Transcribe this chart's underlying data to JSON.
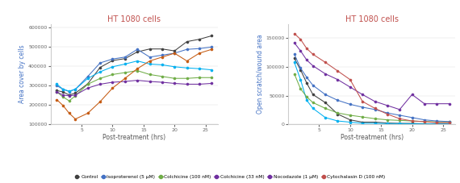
{
  "title": "HT 1080 cells",
  "title_color": "#c0504d",
  "xlabel": "Post-treatment (hrs)",
  "ylabel_left": "Area cover by cells",
  "ylabel_right": "Open scratch/wound area",
  "x": [
    1,
    2,
    3,
    4,
    6,
    8,
    10,
    12,
    14,
    16,
    18,
    20,
    22,
    24,
    26
  ],
  "left_series": [
    {
      "key": "control",
      "color": "#404040",
      "values": [
        275000,
        268000,
        252000,
        262000,
        310000,
        395000,
        430000,
        440000,
        475000,
        490000,
        490000,
        480000,
        528000,
        540000,
        558000
      ]
    },
    {
      "key": "isoprot",
      "color": "#4472c4",
      "values": [
        300000,
        282000,
        270000,
        282000,
        348000,
        418000,
        438000,
        448000,
        488000,
        448000,
        458000,
        468000,
        488000,
        492000,
        500000
      ]
    },
    {
      "key": "colch100",
      "color": "#70ad47",
      "values": [
        268000,
        242000,
        222000,
        248000,
        308000,
        338000,
        358000,
        368000,
        378000,
        358000,
        348000,
        338000,
        338000,
        342000,
        342000
      ]
    },
    {
      "key": "colch33",
      "color": "#7030a0",
      "values": [
        268000,
        252000,
        248000,
        252000,
        288000,
        308000,
        318000,
        322000,
        328000,
        322000,
        318000,
        312000,
        308000,
        308000,
        312000
      ]
    },
    {
      "key": "lightblue",
      "color": "#00b0f0",
      "values": [
        308000,
        282000,
        272000,
        282000,
        338000,
        372000,
        398000,
        412000,
        428000,
        412000,
        408000,
        398000,
        392000,
        388000,
        382000
      ]
    },
    {
      "key": "orange",
      "color": "#c55a11",
      "values": [
        228000,
        198000,
        158000,
        128000,
        158000,
        218000,
        288000,
        338000,
        388000,
        428000,
        448000,
        468000,
        428000,
        468000,
        488000
      ]
    }
  ],
  "right_series": [
    {
      "key": "control",
      "color": "#404040",
      "values": [
        115000,
        95000,
        72000,
        52000,
        38000,
        18000,
        8000,
        4000,
        4000,
        2500,
        1800,
        1800,
        1200,
        800,
        800
      ]
    },
    {
      "key": "lightblue",
      "color": "#00b0f0",
      "values": [
        108000,
        78000,
        42000,
        28000,
        12000,
        6000,
        4000,
        2000,
        2000,
        1500,
        1500,
        1200,
        800,
        800,
        800
      ]
    },
    {
      "key": "colch100",
      "color": "#70ad47",
      "values": [
        88000,
        62000,
        48000,
        38000,
        28000,
        20000,
        16000,
        13000,
        10000,
        8000,
        7000,
        6000,
        5000,
        4500,
        4500
      ]
    },
    {
      "key": "blue",
      "color": "#4472c4",
      "values": [
        122000,
        98000,
        82000,
        68000,
        52000,
        42000,
        35000,
        30000,
        26000,
        20000,
        16000,
        12000,
        8000,
        6000,
        5000
      ]
    },
    {
      "key": "nocodazole",
      "color": "#7030a0",
      "values": [
        142000,
        128000,
        112000,
        102000,
        88000,
        78000,
        65000,
        52000,
        40000,
        33000,
        26000,
        52000,
        36000,
        36000,
        36000
      ]
    },
    {
      "key": "cytochalasin",
      "color": "#c0504d",
      "values": [
        158000,
        148000,
        132000,
        122000,
        108000,
        93000,
        78000,
        40000,
        28000,
        18000,
        10000,
        6000,
        5000,
        3000,
        3000
      ]
    }
  ],
  "left_ylim": [
    100000,
    620000
  ],
  "left_yticks": [
    100000,
    200000,
    300000,
    400000,
    500000,
    600000
  ],
  "right_ylim": [
    0,
    175000
  ],
  "right_yticks": [
    0,
    50000,
    100000,
    150000
  ],
  "xlim": [
    0,
    27
  ],
  "xticks": [
    5,
    10,
    15,
    20,
    25
  ]
}
